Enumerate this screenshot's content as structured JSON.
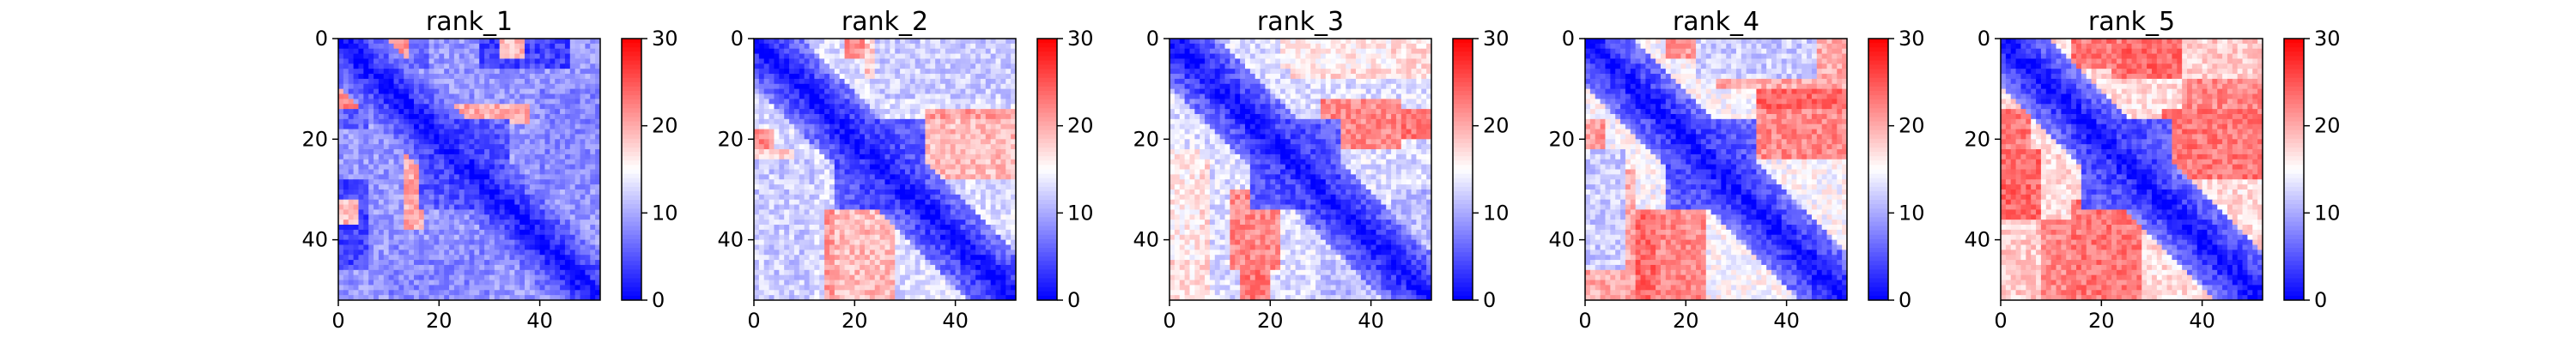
{
  "chart_data": {
    "type": "heatmap",
    "matrix_size": 52,
    "cmap": {
      "name": "bwr",
      "low": "#0000ff",
      "mid": "#ffffff",
      "high": "#ff0000"
    },
    "vmin": 0,
    "vmax": 30,
    "x_ticks": [
      0,
      20,
      40
    ],
    "y_ticks": [
      0,
      20,
      40
    ],
    "colorbar_ticks": [
      0,
      10,
      20,
      30
    ],
    "panels": [
      {
        "title": "rank_1",
        "background": 9,
        "blocks": [
          {
            "rows": [
              0,
              6
            ],
            "cols": [
              6,
              18
            ],
            "value": 6
          },
          {
            "rows": [
              8,
              14
            ],
            "cols": [
              0,
              4
            ],
            "value": 22
          },
          {
            "rows": [
              13,
              17
            ],
            "cols": [
              18,
              38
            ],
            "value": 20
          },
          {
            "rows": [
              0,
              6
            ],
            "cols": [
              28,
              46
            ],
            "value": 4
          },
          {
            "rows": [
              32,
              37
            ],
            "cols": [
              0,
              4
            ],
            "value": 19
          },
          {
            "rows": [
              40,
              52
            ],
            "cols": [
              10,
              30
            ],
            "value": 8
          }
        ]
      },
      {
        "title": "rank_2",
        "background": 13,
        "blocks": [
          {
            "rows": [
              0,
              8
            ],
            "cols": [
              22,
              52
            ],
            "value": 18
          },
          {
            "rows": [
              14,
              20
            ],
            "cols": [
              34,
              52
            ],
            "value": 21
          },
          {
            "rows": [
              18,
              22
            ],
            "cols": [
              0,
              4
            ],
            "value": 22
          },
          {
            "rows": [
              34,
              52
            ],
            "cols": [
              16,
              28
            ],
            "value": 19
          },
          {
            "rows": [
              24,
              52
            ],
            "cols": [
              0,
              12
            ],
            "value": 12
          }
        ]
      },
      {
        "title": "rank_3",
        "background": 13,
        "blocks": [
          {
            "rows": [
              0,
              8
            ],
            "cols": [
              24,
              52
            ],
            "value": 17
          },
          {
            "rows": [
              14,
              20
            ],
            "cols": [
              34,
              52
            ],
            "value": 23
          },
          {
            "rows": [
              30,
              46
            ],
            "cols": [
              12,
              22
            ],
            "value": 22
          },
          {
            "rows": [
              22,
              44
            ],
            "cols": [
              0,
              6
            ],
            "value": 16
          },
          {
            "rows": [
              44,
              52
            ],
            "cols": [
              30,
              40
            ],
            "value": 11
          }
        ]
      },
      {
        "title": "rank_4",
        "background": 15,
        "blocks": [
          {
            "rows": [
              0,
              10
            ],
            "cols": [
              26,
              52
            ],
            "value": 20
          },
          {
            "rows": [
              10,
              20
            ],
            "cols": [
              34,
              52
            ],
            "value": 24
          },
          {
            "rows": [
              16,
              22
            ],
            "cols": [
              0,
              4
            ],
            "value": 21
          },
          {
            "rows": [
              34,
              52
            ],
            "cols": [
              14,
              24
            ],
            "value": 22
          },
          {
            "rows": [
              22,
              46
            ],
            "cols": [
              0,
              8
            ],
            "value": 12
          }
        ]
      },
      {
        "title": "rank_5",
        "background": 17,
        "blocks": [
          {
            "rows": [
              0,
              8
            ],
            "cols": [
              22,
              52
            ],
            "value": 24
          },
          {
            "rows": [
              8,
              20
            ],
            "cols": [
              36,
              52
            ],
            "value": 22
          },
          {
            "rows": [
              14,
              24
            ],
            "cols": [
              0,
              6
            ],
            "value": 23
          },
          {
            "rows": [
              32,
              52
            ],
            "cols": [
              14,
              28
            ],
            "value": 23
          },
          {
            "rows": [
              36,
              52
            ],
            "cols": [
              0,
              8
            ],
            "value": 18
          }
        ]
      }
    ]
  }
}
